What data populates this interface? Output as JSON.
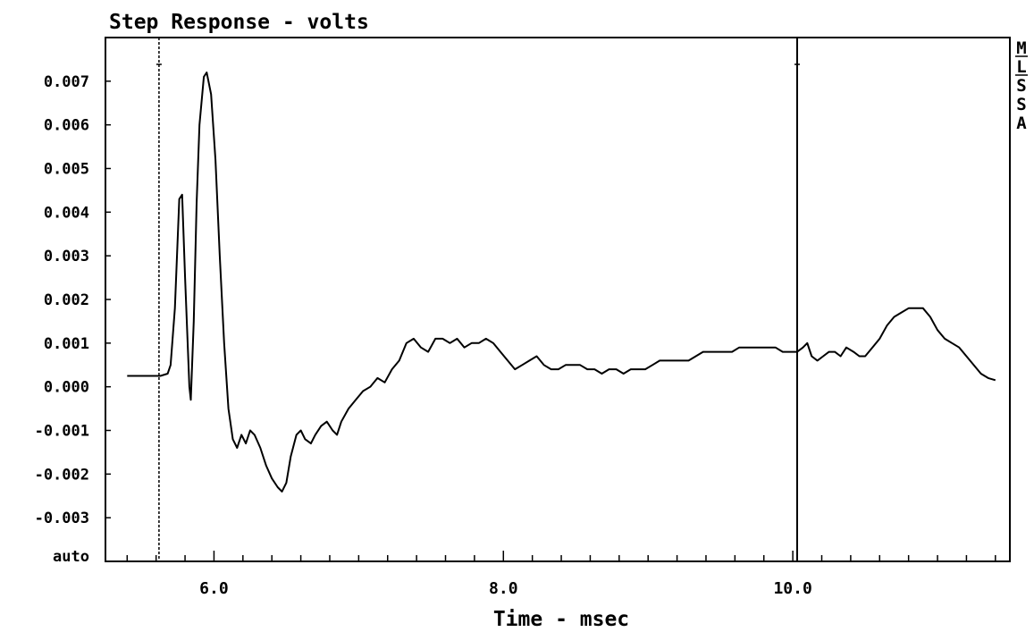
{
  "chart_data": {
    "type": "line",
    "title": "Step Response - volts",
    "xlabel": "Time - msec",
    "ylabel": "",
    "xlim": [
      5.25,
      11.5
    ],
    "ylim": [
      -0.004,
      0.008
    ],
    "x_ticks": [
      "6.0",
      "8.0",
      "10.0"
    ],
    "x_tick_values": [
      6.0,
      8.0,
      10.0
    ],
    "y_ticks": [
      "0.007",
      "0.006",
      "0.005",
      "0.004",
      "0.003",
      "0.002",
      "0.001",
      "0.000",
      "-0.001",
      "-0.002",
      "-0.003"
    ],
    "y_tick_values": [
      0.007,
      0.006,
      0.005,
      0.004,
      0.003,
      0.002,
      0.001,
      0.0,
      -0.001,
      -0.002,
      -0.003
    ],
    "y_scale_label": "auto",
    "side_menu": [
      "M",
      "L",
      "S",
      "S",
      "A"
    ],
    "cursors": [
      {
        "x": 5.62,
        "style": "dashed"
      },
      {
        "x": 10.03,
        "style": "solid"
      }
    ],
    "grid": false,
    "series": [
      {
        "color": "#000000",
        "points": [
          [
            5.4,
            0.00025
          ],
          [
            5.5,
            0.00025
          ],
          [
            5.6,
            0.00025
          ],
          [
            5.63,
            0.00025
          ],
          [
            5.68,
            0.0003
          ],
          [
            5.7,
            0.0005
          ],
          [
            5.73,
            0.0018
          ],
          [
            5.76,
            0.0043
          ],
          [
            5.78,
            0.0044
          ],
          [
            5.8,
            0.0025
          ],
          [
            5.83,
            0.0
          ],
          [
            5.84,
            -0.0003
          ],
          [
            5.86,
            0.0015
          ],
          [
            5.88,
            0.0042
          ],
          [
            5.9,
            0.006
          ],
          [
            5.93,
            0.0071
          ],
          [
            5.95,
            0.0072
          ],
          [
            5.98,
            0.0067
          ],
          [
            6.01,
            0.0052
          ],
          [
            6.04,
            0.003
          ],
          [
            6.07,
            0.001
          ],
          [
            6.1,
            -0.0005
          ],
          [
            6.13,
            -0.0012
          ],
          [
            6.16,
            -0.0014
          ],
          [
            6.19,
            -0.0011
          ],
          [
            6.22,
            -0.0013
          ],
          [
            6.25,
            -0.001
          ],
          [
            6.28,
            -0.0011
          ],
          [
            6.32,
            -0.0014
          ],
          [
            6.36,
            -0.0018
          ],
          [
            6.4,
            -0.0021
          ],
          [
            6.44,
            -0.0023
          ],
          [
            6.47,
            -0.0024
          ],
          [
            6.5,
            -0.0022
          ],
          [
            6.53,
            -0.0016
          ],
          [
            6.57,
            -0.0011
          ],
          [
            6.6,
            -0.001
          ],
          [
            6.63,
            -0.0012
          ],
          [
            6.67,
            -0.0013
          ],
          [
            6.7,
            -0.0011
          ],
          [
            6.74,
            -0.0009
          ],
          [
            6.78,
            -0.0008
          ],
          [
            6.82,
            -0.001
          ],
          [
            6.85,
            -0.0011
          ],
          [
            6.88,
            -0.0008
          ],
          [
            6.93,
            -0.0005
          ],
          [
            6.98,
            -0.0003
          ],
          [
            7.03,
            -0.0001
          ],
          [
            7.08,
            0.0
          ],
          [
            7.13,
            0.0002
          ],
          [
            7.18,
            0.0001
          ],
          [
            7.23,
            0.0004
          ],
          [
            7.28,
            0.0006
          ],
          [
            7.33,
            0.001
          ],
          [
            7.38,
            0.0011
          ],
          [
            7.43,
            0.0009
          ],
          [
            7.48,
            0.0008
          ],
          [
            7.53,
            0.0011
          ],
          [
            7.58,
            0.0011
          ],
          [
            7.63,
            0.001
          ],
          [
            7.68,
            0.0011
          ],
          [
            7.73,
            0.0009
          ],
          [
            7.78,
            0.001
          ],
          [
            7.83,
            0.001
          ],
          [
            7.88,
            0.0011
          ],
          [
            7.93,
            0.001
          ],
          [
            7.98,
            0.0008
          ],
          [
            8.03,
            0.0006
          ],
          [
            8.08,
            0.0004
          ],
          [
            8.13,
            0.0005
          ],
          [
            8.18,
            0.0006
          ],
          [
            8.23,
            0.0007
          ],
          [
            8.28,
            0.0005
          ],
          [
            8.33,
            0.0004
          ],
          [
            8.38,
            0.0004
          ],
          [
            8.43,
            0.0005
          ],
          [
            8.48,
            0.0005
          ],
          [
            8.53,
            0.0005
          ],
          [
            8.58,
            0.0004
          ],
          [
            8.63,
            0.0004
          ],
          [
            8.68,
            0.0003
          ],
          [
            8.73,
            0.0004
          ],
          [
            8.78,
            0.0004
          ],
          [
            8.83,
            0.0003
          ],
          [
            8.88,
            0.0004
          ],
          [
            8.93,
            0.0004
          ],
          [
            8.98,
            0.0004
          ],
          [
            9.03,
            0.0005
          ],
          [
            9.08,
            0.0006
          ],
          [
            9.13,
            0.0006
          ],
          [
            9.18,
            0.0006
          ],
          [
            9.23,
            0.0006
          ],
          [
            9.28,
            0.0006
          ],
          [
            9.33,
            0.0007
          ],
          [
            9.38,
            0.0008
          ],
          [
            9.43,
            0.0008
          ],
          [
            9.48,
            0.0008
          ],
          [
            9.53,
            0.0008
          ],
          [
            9.58,
            0.0008
          ],
          [
            9.63,
            0.0009
          ],
          [
            9.68,
            0.0009
          ],
          [
            9.73,
            0.0009
          ],
          [
            9.78,
            0.0009
          ],
          [
            9.83,
            0.0009
          ],
          [
            9.88,
            0.0009
          ],
          [
            9.93,
            0.0008
          ],
          [
            9.98,
            0.0008
          ],
          [
            10.03,
            0.0008
          ],
          [
            10.07,
            0.0009
          ],
          [
            10.1,
            0.001
          ],
          [
            10.13,
            0.0007
          ],
          [
            10.17,
            0.0006
          ],
          [
            10.21,
            0.0007
          ],
          [
            10.25,
            0.0008
          ],
          [
            10.29,
            0.0008
          ],
          [
            10.33,
            0.0007
          ],
          [
            10.37,
            0.0009
          ],
          [
            10.42,
            0.0008
          ],
          [
            10.46,
            0.0007
          ],
          [
            10.5,
            0.0007
          ],
          [
            10.55,
            0.0009
          ],
          [
            10.6,
            0.0011
          ],
          [
            10.65,
            0.0014
          ],
          [
            10.7,
            0.0016
          ],
          [
            10.75,
            0.0017
          ],
          [
            10.8,
            0.0018
          ],
          [
            10.85,
            0.0018
          ],
          [
            10.9,
            0.0018
          ],
          [
            10.95,
            0.0016
          ],
          [
            11.0,
            0.0013
          ],
          [
            11.05,
            0.0011
          ],
          [
            11.1,
            0.001
          ],
          [
            11.15,
            0.0009
          ],
          [
            11.2,
            0.0007
          ],
          [
            11.25,
            0.0005
          ],
          [
            11.3,
            0.0003
          ],
          [
            11.35,
            0.0002
          ],
          [
            11.4,
            0.00015
          ]
        ]
      }
    ]
  }
}
